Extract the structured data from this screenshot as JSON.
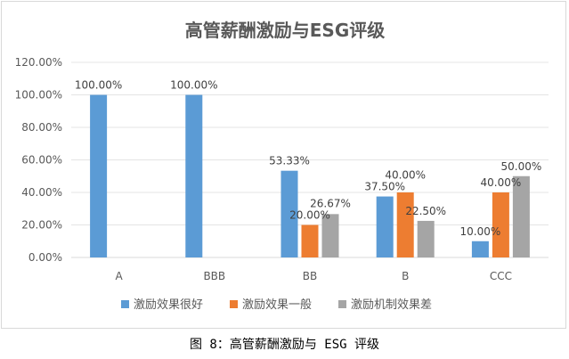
{
  "caption": "图 8：高管薪酬激励与 ESG 评级",
  "chart_data": {
    "type": "bar",
    "title": "高管薪酬激励与ESG评级",
    "xlabel": "",
    "ylabel": "",
    "ylim": [
      0,
      120
    ],
    "y_ticks": [
      "0.00%",
      "20.00%",
      "40.00%",
      "60.00%",
      "80.00%",
      "100.00%",
      "120.00%"
    ],
    "categories": [
      "A",
      "BBB",
      "BB",
      "B",
      "CCC"
    ],
    "grid": true,
    "legend_position": "bottom",
    "series": [
      {
        "name": "激励效果很好",
        "color": "#5b9bd5",
        "values": [
          100.0,
          100.0,
          53.33,
          37.5,
          10.0
        ],
        "labels": [
          "100.00%",
          "100.00%",
          "53.33%",
          "37.50%",
          "10.00%"
        ]
      },
      {
        "name": "激励效果一般",
        "color": "#ed7d31",
        "values": [
          null,
          null,
          20.0,
          40.0,
          40.0
        ],
        "labels": [
          "",
          "",
          "20.00%",
          "40.00%",
          "40.00%"
        ]
      },
      {
        "name": "激励机制效果差",
        "color": "#a5a5a5",
        "values": [
          null,
          null,
          26.67,
          22.5,
          50.0
        ],
        "labels": [
          "",
          "",
          "26.67%",
          "22.50%",
          "50.00%"
        ]
      }
    ]
  }
}
